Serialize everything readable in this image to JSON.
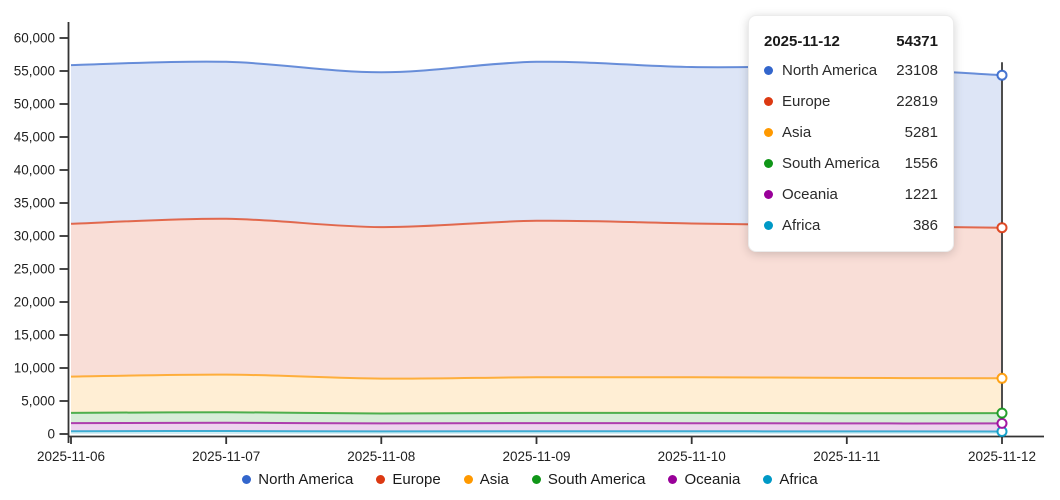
{
  "chart_data": {
    "type": "area",
    "stacked": true,
    "x": [
      "2025-11-06",
      "2025-11-07",
      "2025-11-08",
      "2025-11-09",
      "2025-11-10",
      "2025-11-11",
      "2025-11-12"
    ],
    "series": [
      {
        "name": "North America",
        "color": "#3366CC",
        "values": [
          24050,
          23800,
          23450,
          24100,
          23700,
          24050,
          23108
        ]
      },
      {
        "name": "Europe",
        "color": "#DC3912",
        "values": [
          23150,
          23600,
          22950,
          23700,
          23300,
          23050,
          22819
        ]
      },
      {
        "name": "Asia",
        "color": "#FF9900",
        "values": [
          5500,
          5700,
          5300,
          5400,
          5400,
          5350,
          5281
        ]
      },
      {
        "name": "South America",
        "color": "#109618",
        "values": [
          1550,
          1600,
          1500,
          1550,
          1570,
          1550,
          1556
        ]
      },
      {
        "name": "Oceania",
        "color": "#990099",
        "values": [
          1230,
          1250,
          1200,
          1230,
          1220,
          1200,
          1221
        ]
      },
      {
        "name": "Africa",
        "color": "#0099C6",
        "values": [
          420,
          450,
          400,
          420,
          410,
          400,
          386
        ]
      }
    ],
    "stack_order_bottom_to_top": [
      "Africa",
      "Oceania",
      "South America",
      "Asia",
      "Europe",
      "North America"
    ],
    "ylim": [
      0,
      60000
    ],
    "ytick_step": 5000,
    "ytick_labels": [
      "0",
      "5,000",
      "10,000",
      "15,000",
      "20,000",
      "25,000",
      "30,000",
      "35,000",
      "40,000",
      "45,000",
      "50,000",
      "55,000",
      "60,000"
    ],
    "grid": false,
    "legend_position": "bottom",
    "hover_index": 6,
    "axis_color": "#333333",
    "crosshair_color": "#4d4d4d"
  },
  "tooltip": {
    "date": "2025-11-12",
    "total": "54371",
    "rows": [
      {
        "label": "North America",
        "value": "23108",
        "color": "#3366CC"
      },
      {
        "label": "Europe",
        "value": "22819",
        "color": "#DC3912"
      },
      {
        "label": "Asia",
        "value": "5281",
        "color": "#FF9900"
      },
      {
        "label": "South America",
        "value": "1556",
        "color": "#109618"
      },
      {
        "label": "Oceania",
        "value": "1221",
        "color": "#990099"
      },
      {
        "label": "Africa",
        "value": "386",
        "color": "#0099C6"
      }
    ]
  },
  "legend": {
    "items": [
      {
        "label": "North America",
        "color": "#3366CC"
      },
      {
        "label": "Europe",
        "color": "#DC3912"
      },
      {
        "label": "Asia",
        "color": "#FF9900"
      },
      {
        "label": "South America",
        "color": "#109618"
      },
      {
        "label": "Oceania",
        "color": "#990099"
      },
      {
        "label": "Africa",
        "color": "#0099C6"
      }
    ]
  }
}
